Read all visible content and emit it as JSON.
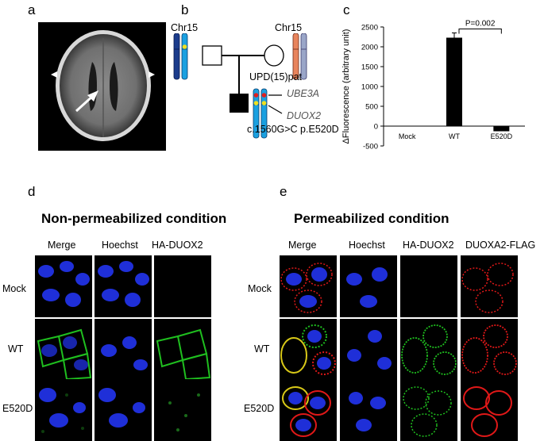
{
  "panels": {
    "a": {
      "label": "a"
    },
    "b": {
      "label": "b",
      "chr_left": "Chr15",
      "chr_right": "Chr15",
      "upd": "UPD(15)pat",
      "gene1": "UBE3A",
      "gene2": "DUOX2",
      "mutation": "c.1560G>C p.E520D"
    },
    "c": {
      "label": "c"
    },
    "d": {
      "label": "d",
      "title": "Non-permeabilized condition",
      "columns": [
        "Merge",
        "Hoechst",
        "HA-DUOX2"
      ],
      "rows": [
        "Mock",
        "WT",
        "E520D"
      ]
    },
    "e": {
      "label": "e",
      "title": "Permeabilized condition",
      "columns": [
        "Merge",
        "Hoechst",
        "HA-DUOX2",
        "DUOXA2-FLAG"
      ],
      "rows": [
        "Mock",
        "WT",
        "E520D"
      ]
    }
  },
  "colors": {
    "hoechst": "#1f2fd8",
    "duox2": "#1fbf1f",
    "flag": "#e01818",
    "chr_blue": "#1aa0e0",
    "chr_dark": "#1c3c8c",
    "chr_orange": "#e8845c"
  },
  "chart_data": {
    "type": "bar",
    "categories": [
      "Mock",
      "WT",
      "E520D"
    ],
    "values": [
      0,
      2230,
      -130
    ],
    "errors": [
      0,
      120,
      40
    ],
    "ylabel": "ΔFluorescence (arbitrary unit)",
    "ylim": [
      -500,
      2500
    ],
    "yticks": [
      "-500",
      "0",
      "500",
      "1000",
      "1500",
      "2000",
      "2500"
    ],
    "annotation": "P=0.002"
  }
}
